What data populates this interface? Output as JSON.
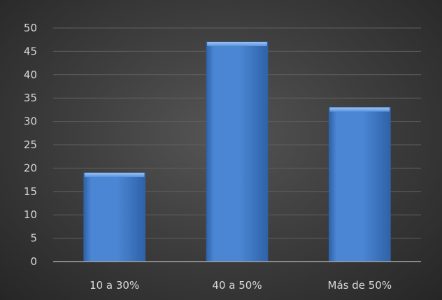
{
  "chart_data": {
    "type": "bar",
    "categories": [
      "10 a 30%",
      "40 a 50%",
      "Más de 50%"
    ],
    "values": [
      19,
      47,
      33
    ],
    "title": "",
    "xlabel": "",
    "ylabel": "",
    "ylim": [
      0,
      50
    ],
    "yticks": [
      "0",
      "5",
      "10",
      "15",
      "20",
      "25",
      "30",
      "35",
      "40",
      "45",
      "50"
    ],
    "grid": true,
    "legend": "none",
    "colors": {
      "bar": "#4a86d4",
      "bar_dark": "#2f62a8",
      "bar_top": "#7fb0ee",
      "background": "#3c3c3c",
      "gridline": "#5f5f5f",
      "text": "#d9d9d9"
    }
  }
}
